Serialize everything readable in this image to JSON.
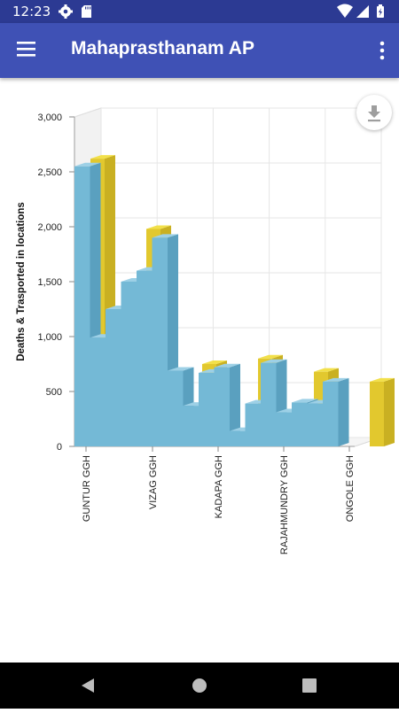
{
  "status_bar": {
    "time": "12:23"
  },
  "app_bar": {
    "title": "Mahaprasthanam AP"
  },
  "colors": {
    "status_bar": "#2c3a93",
    "app_bar": "#3f51b5",
    "bar_blue": "#74b9d6",
    "bar_yellow": "#e6cc2c"
  },
  "icons": [
    "menu-icon",
    "more-vert-icon",
    "download-icon",
    "settings-icon",
    "sd-card-icon",
    "wifi-icon",
    "signal-icon",
    "battery-icon",
    "back-icon",
    "home-icon",
    "recents-icon"
  ],
  "chart_data": {
    "type": "bar",
    "ylabel": "Deaths & Trasported in locations",
    "ylim": [
      0,
      3000
    ],
    "yticks": [
      "0",
      "500",
      "1,000",
      "1,500",
      "2,000",
      "2,500",
      "3,000"
    ],
    "grid": true,
    "x_labels": [
      "GUNTUR GGH",
      "VIZAG GGH",
      "KADAPA GGH",
      "RAJAHMUNDRY GGH",
      "ONGOLE GGH"
    ],
    "series": [
      {
        "values": [
          2550,
          990,
          1250,
          1500,
          1600,
          1900,
          690,
          370,
          670,
          720,
          140,
          390,
          760,
          310,
          400,
          390,
          590
        ]
      },
      {
        "values": [
          2620,
          1980,
          750,
          800,
          680,
          590
        ]
      }
    ]
  }
}
